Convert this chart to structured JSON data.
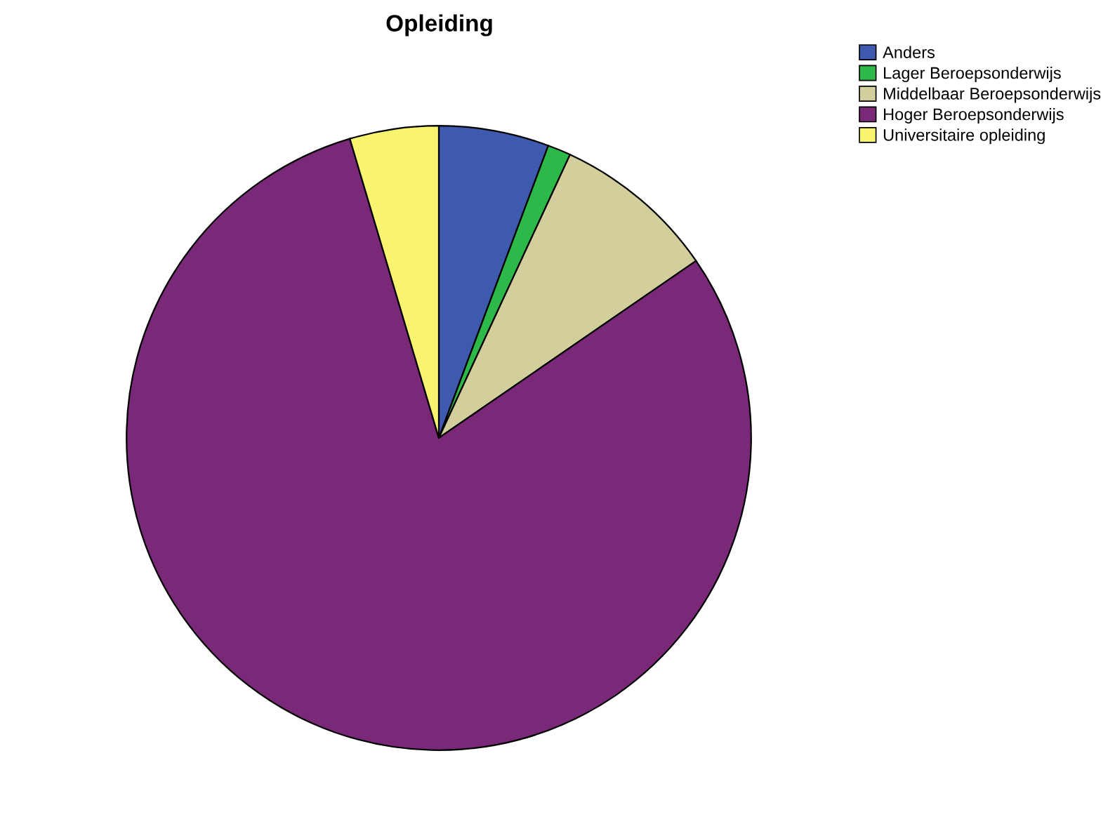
{
  "chart_data": {
    "type": "pie",
    "title": "Opleiding",
    "categories": [
      "Anders",
      "Lager Beroepsonderwijs",
      "Middelbaar Beroepsonderwijs",
      "Hoger Beroepsonderwijs",
      "Universitaire opleiding"
    ],
    "values": [
      5.7,
      1.2,
      8.5,
      80.0,
      4.6
    ],
    "colors": [
      "#3d5aaf",
      "#2db84a",
      "#d3cf9c",
      "#7a2878",
      "#f8f470"
    ],
    "legend": "top right"
  }
}
